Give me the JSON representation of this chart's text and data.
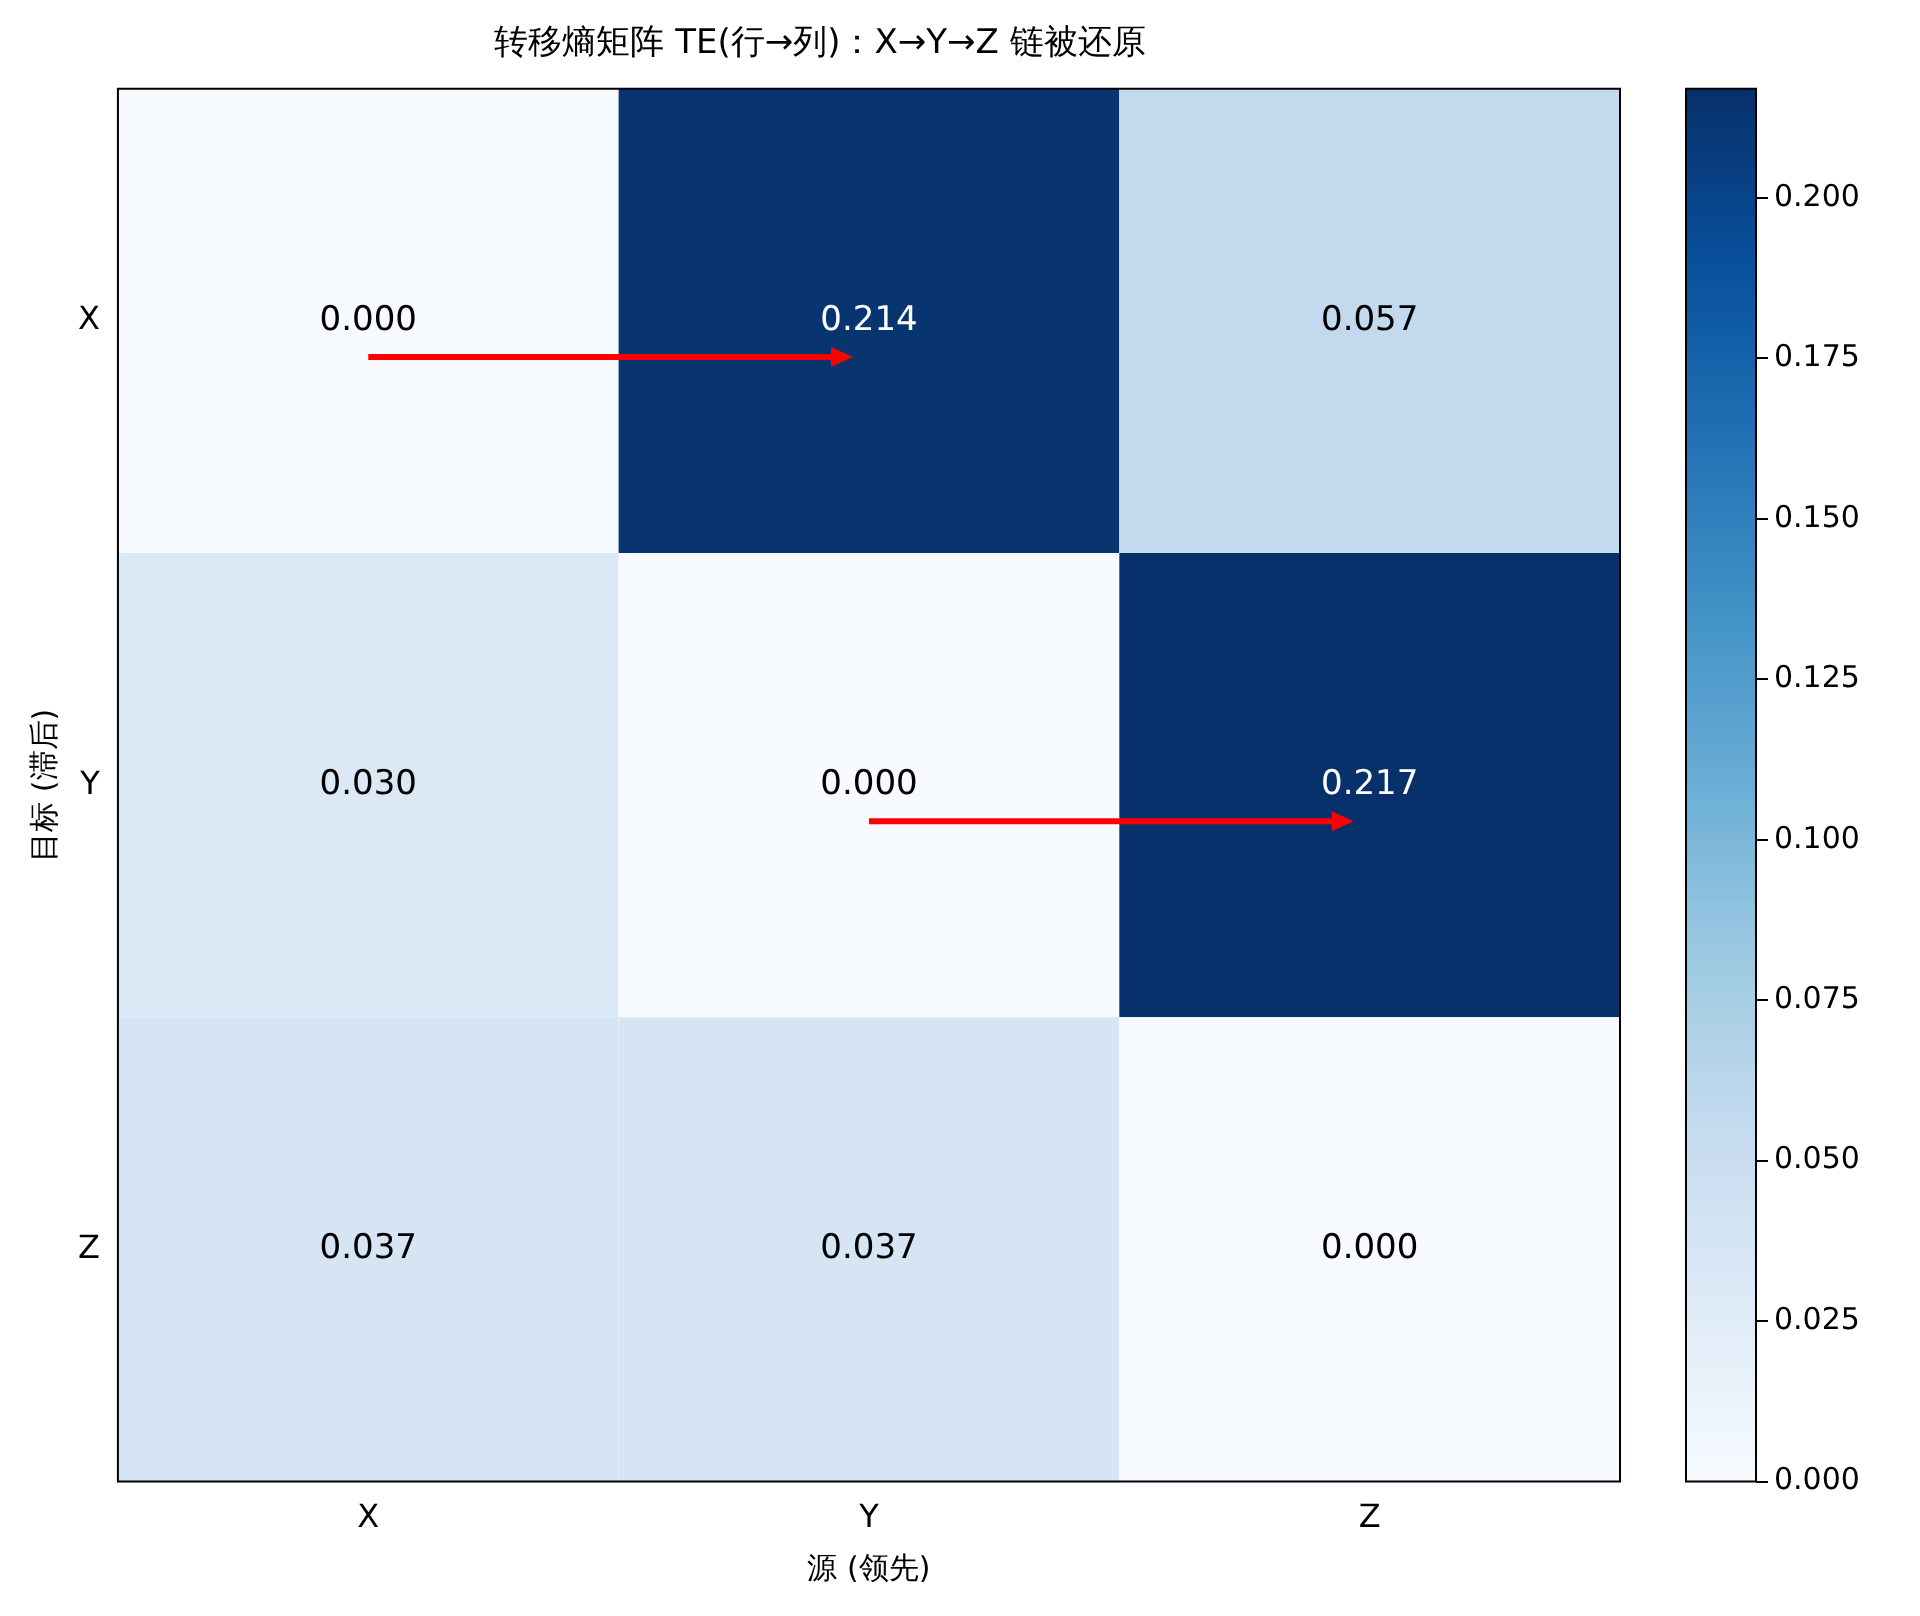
{
  "chart_data": {
    "type": "heatmap",
    "title": "转移熵矩阵 TE(行→列)：X→Y→Z 链被还原",
    "xlabel": "源 (领先)",
    "ylabel": "目标 (滞后)",
    "categories": [
      "X",
      "Y",
      "Z"
    ],
    "y_categories": [
      "X",
      "Y",
      "Z"
    ],
    "cells": [
      [
        0.0,
        0.214,
        0.057
      ],
      [
        0.03,
        0.0,
        0.217
      ],
      [
        0.037,
        0.037,
        0.0
      ]
    ],
    "cell_labels": [
      [
        "0.000",
        "0.214",
        "0.057"
      ],
      [
        "0.030",
        "0.000",
        "0.217"
      ],
      [
        "0.037",
        "0.037",
        "0.000"
      ]
    ],
    "clim": [
      0,
      0.217
    ],
    "cticks": [
      {
        "value": 0,
        "label": "0.000"
      },
      {
        "value": 0.025,
        "label": "0.025"
      },
      {
        "value": 0.05,
        "label": "0.050"
      },
      {
        "value": 0.075,
        "label": "0.075"
      },
      {
        "value": 0.1,
        "label": "0.100"
      },
      {
        "value": 0.125,
        "label": "0.125"
      },
      {
        "value": 0.15,
        "label": "0.150"
      },
      {
        "value": 0.175,
        "label": "0.175"
      },
      {
        "value": 0.2,
        "label": "0.200"
      }
    ]
  }
}
